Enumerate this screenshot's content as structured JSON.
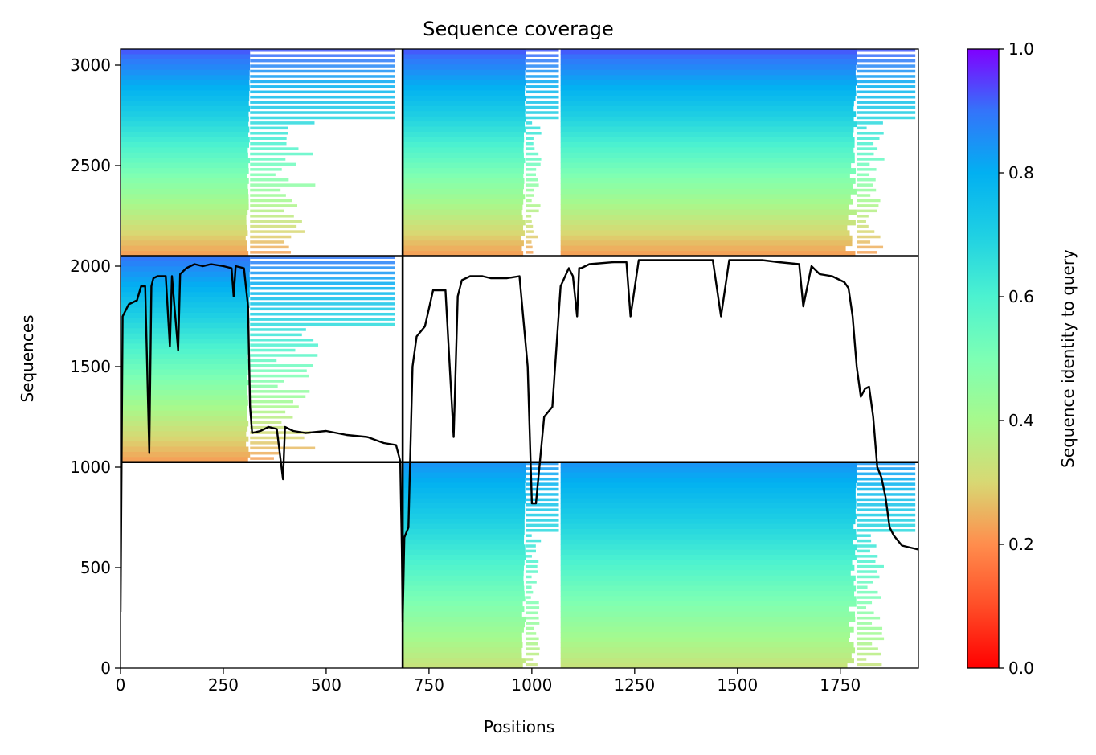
{
  "chart_data": {
    "type": "heatmap",
    "title": "Sequence coverage",
    "xlabel": "Positions",
    "ylabel": "Sequences",
    "xlim": [
      0,
      1940
    ],
    "ylim": [
      0,
      3080
    ],
    "xticks": [
      0,
      250,
      500,
      750,
      1000,
      1250,
      1500,
      1750
    ],
    "yticks": [
      0,
      500,
      1000,
      1500,
      2000,
      2500,
      3000
    ],
    "colorbar": {
      "label": "Sequence identity to query",
      "ticks": [
        "0.0",
        "0.2",
        "0.4",
        "0.6",
        "0.8",
        "1.0"
      ],
      "range": [
        0,
        1
      ],
      "colormap": "rainbow_r"
    },
    "segment_boundaries_x": [
      686
    ],
    "segment_boundaries_y": [
      1025,
      2050
    ],
    "blocks": [
      {
        "name": "upper-left",
        "x": [
          0,
          686
        ],
        "y": [
          2050,
          3080
        ],
        "identity_top": 0.93,
        "identity_bottom": 0.22,
        "dense_cols": [
          [
            0,
            315
          ]
        ],
        "sparse_cols": [
          [
            315,
            686
          ]
        ]
      },
      {
        "name": "upper-right",
        "x": [
          686,
          1940
        ],
        "y": [
          2050,
          3080
        ],
        "identity_top": 0.93,
        "identity_bottom": 0.22,
        "dense_cols": [
          [
            686,
            985
          ],
          [
            1070,
            1790
          ]
        ],
        "sparse_cols": [
          [
            985,
            1070
          ],
          [
            1790,
            1940
          ]
        ]
      },
      {
        "name": "middle-left",
        "x": [
          0,
          686
        ],
        "y": [
          1025,
          2050
        ],
        "identity_top": 0.9,
        "identity_bottom": 0.22,
        "dense_cols": [
          [
            0,
            315
          ]
        ],
        "sparse_cols": [
          [
            315,
            686
          ]
        ]
      },
      {
        "name": "lower-right",
        "x": [
          686,
          1940
        ],
        "y": [
          0,
          1025
        ],
        "identity_top": 0.85,
        "identity_bottom": 0.33,
        "dense_cols": [
          [
            686,
            985
          ],
          [
            1070,
            1790
          ]
        ],
        "sparse_cols": [
          [
            985,
            1070
          ],
          [
            1790,
            1940
          ]
        ]
      }
    ],
    "coverage_line": {
      "x": [
        0,
        5,
        10,
        20,
        40,
        50,
        60,
        70,
        75,
        80,
        90,
        110,
        120,
        125,
        140,
        145,
        160,
        180,
        200,
        220,
        250,
        270,
        275,
        280,
        300,
        310,
        315,
        320,
        340,
        360,
        380,
        395,
        400,
        420,
        450,
        500,
        550,
        600,
        640,
        670,
        680,
        684,
        686,
        690,
        700,
        710,
        720,
        740,
        760,
        790,
        810,
        820,
        830,
        840,
        850,
        880,
        900,
        940,
        970,
        990,
        1000,
        1010,
        1030,
        1050,
        1070,
        1090,
        1100,
        1110,
        1115,
        1120,
        1140,
        1200,
        1230,
        1240,
        1260,
        1300,
        1350,
        1400,
        1440,
        1460,
        1480,
        1490,
        1500,
        1520,
        1560,
        1600,
        1650,
        1660,
        1680,
        1700,
        1730,
        1760,
        1770,
        1780,
        1790,
        1800,
        1810,
        1820,
        1830,
        1840,
        1850,
        1860,
        1870,
        1880,
        1900,
        1920,
        1940
      ],
      "y": [
        280,
        1750,
        1770,
        1810,
        1830,
        1900,
        1900,
        1070,
        1900,
        1940,
        1950,
        1950,
        1600,
        1950,
        1580,
        1960,
        1990,
        2010,
        2000,
        2010,
        2000,
        1990,
        1850,
        2000,
        1990,
        1800,
        1300,
        1170,
        1180,
        1200,
        1190,
        940,
        1200,
        1180,
        1170,
        1180,
        1160,
        1150,
        1120,
        1110,
        1030,
        600,
        230,
        650,
        700,
        1500,
        1650,
        1700,
        1880,
        1880,
        1150,
        1850,
        1930,
        1940,
        1950,
        1950,
        1940,
        1940,
        1950,
        1500,
        820,
        820,
        1250,
        1300,
        1900,
        1990,
        1950,
        1750,
        1990,
        1990,
        2010,
        2020,
        2020,
        1750,
        2030,
        2030,
        2030,
        2030,
        2030,
        1750,
        2030,
        2030,
        2030,
        2030,
        2030,
        2020,
        2010,
        1800,
        2000,
        1960,
        1950,
        1920,
        1890,
        1750,
        1500,
        1350,
        1390,
        1400,
        1250,
        1000,
        950,
        850,
        700,
        660,
        610,
        600,
        590
      ]
    }
  }
}
